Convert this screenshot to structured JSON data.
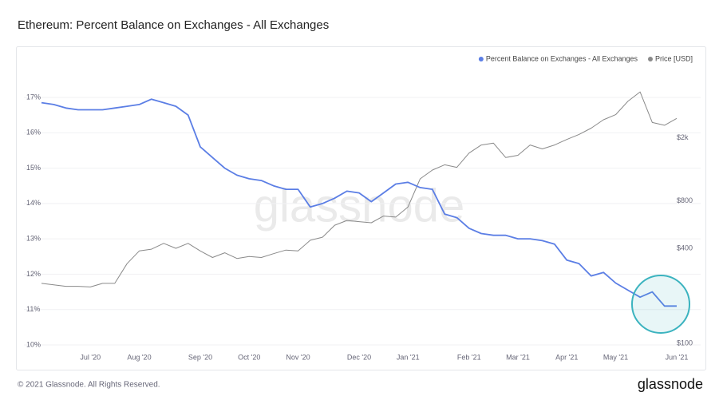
{
  "chart_data": {
    "type": "line",
    "title": "Ethereum: Percent Balance on Exchanges - All Exchanges",
    "watermark": "glassnode",
    "footer": "© 2021 Glassnode. All Rights Reserved.",
    "logo": "glassnode",
    "categories": [
      "",
      null,
      null,
      null,
      "Jul '20",
      null,
      null,
      null,
      "Aug '20",
      null,
      null,
      null,
      null,
      "Sep '20",
      null,
      null,
      null,
      "Oct '20",
      null,
      null,
      null,
      "Nov '20",
      null,
      null,
      null,
      null,
      "Dec '20",
      null,
      null,
      null,
      "Jan '21",
      null,
      null,
      null,
      null,
      "Feb '21",
      null,
      null,
      null,
      "Mar '21",
      null,
      null,
      null,
      "Apr '21",
      null,
      null,
      null,
      "May '21",
      null,
      null,
      null,
      null,
      "Jun '21"
    ],
    "series": [
      {
        "name": "Percent Balance on Exchanges - All Exchanges",
        "color": "#5b7ee5",
        "axis": "y",
        "values": [
          16.85,
          16.8,
          16.7,
          16.65,
          16.65,
          16.65,
          16.7,
          16.75,
          16.8,
          16.95,
          16.85,
          16.75,
          16.5,
          15.6,
          15.3,
          15.0,
          14.8,
          14.7,
          14.65,
          14.5,
          14.4,
          14.4,
          13.9,
          14.0,
          14.15,
          14.35,
          14.3,
          14.05,
          14.3,
          14.55,
          14.6,
          14.45,
          14.4,
          13.7,
          13.6,
          13.3,
          13.15,
          13.1,
          13.1,
          13.0,
          13.0,
          12.95,
          12.85,
          12.4,
          12.3,
          11.95,
          12.05,
          11.75,
          11.55,
          11.35,
          11.5,
          11.1,
          11.1
        ]
      },
      {
        "name": "Price [USD]",
        "color": "#8a8a8a",
        "axis": "y2",
        "values": [
          240,
          235,
          230,
          230,
          228,
          240,
          240,
          320,
          385,
          395,
          430,
          400,
          430,
          385,
          350,
          375,
          345,
          355,
          350,
          370,
          390,
          385,
          450,
          470,
          560,
          600,
          590,
          580,
          640,
          630,
          730,
          1100,
          1250,
          1350,
          1300,
          1600,
          1800,
          1850,
          1500,
          1550,
          1800,
          1700,
          1800,
          1950,
          2100,
          2300,
          2600,
          2800,
          3400,
          3900,
          2500,
          2400,
          2650
        ]
      }
    ],
    "ylim": [
      10,
      18.4
    ],
    "yticks": [
      {
        "value": 10,
        "label": "10%"
      },
      {
        "value": 11,
        "label": "11%"
      },
      {
        "value": 12,
        "label": "12%"
      },
      {
        "value": 13,
        "label": "13%"
      },
      {
        "value": 14,
        "label": "14%"
      },
      {
        "value": 15,
        "label": "15%"
      },
      {
        "value": 16,
        "label": "16%"
      },
      {
        "value": 17,
        "label": "17%"
      }
    ],
    "y2lim": [
      98,
      7400
    ],
    "y2scale": "log",
    "y2ticks": [
      {
        "value": 100,
        "label": "$100"
      },
      {
        "value": 400,
        "label": "$400"
      },
      {
        "value": 800,
        "label": "$800"
      },
      {
        "value": 2000,
        "label": "$2k"
      }
    ],
    "grid": true,
    "legend": "top-right"
  }
}
